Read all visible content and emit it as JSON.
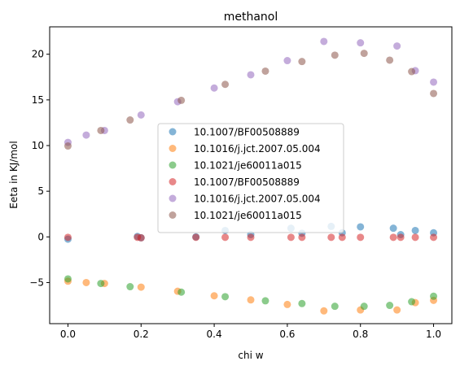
{
  "chart_data": {
    "type": "scatter",
    "title": "methanol",
    "xlabel": "chi w",
    "ylabel": "Eeta in KJ/mol",
    "xlim": [
      -0.05,
      1.05
    ],
    "ylim": [
      -9.5,
      23.0
    ],
    "xticks": [
      0.0,
      0.2,
      0.4,
      0.6,
      0.8,
      1.0
    ],
    "xtick_labels": [
      "0.0",
      "0.2",
      "0.4",
      "0.6",
      "0.8",
      "1.0"
    ],
    "yticks": [
      -5,
      0,
      5,
      10,
      15,
      20
    ],
    "ytick_labels": [
      "−5",
      "0",
      "5",
      "10",
      "15",
      "20"
    ],
    "legend_position": "center",
    "marker_alpha": 0.55,
    "series": [
      {
        "name": "10.1007/BF00508889",
        "color": "#1f77b4",
        "points": [
          [
            0.0,
            -0.25
          ],
          [
            0.19,
            0.05
          ],
          [
            0.2,
            -0.1
          ],
          [
            0.35,
            0.0
          ],
          [
            0.43,
            0.7
          ],
          [
            0.5,
            0.25
          ],
          [
            0.61,
            0.95
          ],
          [
            0.64,
            0.4
          ],
          [
            0.72,
            1.15
          ],
          [
            0.75,
            0.45
          ],
          [
            0.8,
            1.1
          ],
          [
            0.89,
            0.95
          ],
          [
            0.91,
            0.25
          ],
          [
            0.95,
            0.7
          ],
          [
            1.0,
            0.45
          ]
        ]
      },
      {
        "name": "10.1016/j.jct.2007.05.004",
        "color": "#ff7f0e",
        "points": [
          [
            0.0,
            -4.85
          ],
          [
            0.05,
            -5.0
          ],
          [
            0.1,
            -5.1
          ],
          [
            0.2,
            -5.5
          ],
          [
            0.3,
            -5.95
          ],
          [
            0.4,
            -6.45
          ],
          [
            0.5,
            -6.9
          ],
          [
            0.6,
            -7.4
          ],
          [
            0.7,
            -8.1
          ],
          [
            0.8,
            -8.0
          ],
          [
            0.9,
            -8.0
          ],
          [
            0.95,
            -7.2
          ],
          [
            1.0,
            -6.95
          ]
        ]
      },
      {
        "name": "10.1021/je60011a015",
        "color": "#2ca02c",
        "points": [
          [
            0.0,
            -4.6
          ],
          [
            0.09,
            -5.1
          ],
          [
            0.17,
            -5.45
          ],
          [
            0.31,
            -6.05
          ],
          [
            0.43,
            -6.55
          ],
          [
            0.54,
            -7.0
          ],
          [
            0.64,
            -7.3
          ],
          [
            0.73,
            -7.6
          ],
          [
            0.81,
            -7.6
          ],
          [
            0.88,
            -7.5
          ],
          [
            0.94,
            -7.1
          ],
          [
            1.0,
            -6.5
          ]
        ]
      },
      {
        "name": "10.1007/BF00508889",
        "color": "#d62728",
        "points": [
          [
            0.0,
            -0.05
          ],
          [
            0.19,
            -0.05
          ],
          [
            0.2,
            -0.1
          ],
          [
            0.35,
            -0.05
          ],
          [
            0.43,
            -0.05
          ],
          [
            0.5,
            -0.05
          ],
          [
            0.61,
            -0.05
          ],
          [
            0.64,
            -0.05
          ],
          [
            0.72,
            -0.05
          ],
          [
            0.75,
            -0.05
          ],
          [
            0.8,
            -0.05
          ],
          [
            0.89,
            -0.05
          ],
          [
            0.91,
            -0.05
          ],
          [
            0.95,
            -0.05
          ],
          [
            1.0,
            -0.05
          ]
        ]
      },
      {
        "name": "10.1016/j.jct.2007.05.004",
        "color": "#9467bd",
        "points": [
          [
            0.0,
            10.35
          ],
          [
            0.05,
            11.15
          ],
          [
            0.1,
            11.65
          ],
          [
            0.2,
            13.35
          ],
          [
            0.3,
            14.8
          ],
          [
            0.4,
            16.3
          ],
          [
            0.5,
            17.75
          ],
          [
            0.6,
            19.3
          ],
          [
            0.7,
            21.4
          ],
          [
            0.8,
            21.25
          ],
          [
            0.9,
            20.9
          ],
          [
            0.95,
            18.2
          ],
          [
            1.0,
            16.95
          ]
        ]
      },
      {
        "name": "10.1021/je60011a015",
        "color": "#8c564b",
        "points": [
          [
            0.0,
            9.95
          ],
          [
            0.09,
            11.65
          ],
          [
            0.17,
            12.8
          ],
          [
            0.31,
            14.95
          ],
          [
            0.43,
            16.7
          ],
          [
            0.54,
            18.15
          ],
          [
            0.64,
            19.2
          ],
          [
            0.73,
            19.9
          ],
          [
            0.81,
            20.1
          ],
          [
            0.88,
            19.35
          ],
          [
            0.94,
            18.1
          ],
          [
            1.0,
            15.7
          ]
        ]
      }
    ]
  }
}
